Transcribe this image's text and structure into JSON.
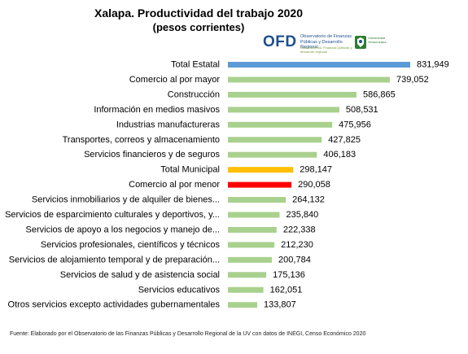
{
  "header": {
    "title": "Xalapa. Productividad  del trabajo 2020",
    "subtitle": "(pesos corrientes)"
  },
  "logo": {
    "acronym": "OFD",
    "name": "Observatorio de Finanzas Públicas y Desarrollo Regional",
    "tagline": "Datos Abiertos: Finanzas públicas y desarrollo regional",
    "institution": "Universidad Veracruzana",
    "icon": "uv-emblem-icon"
  },
  "chart_data": {
    "type": "bar",
    "orientation": "horizontal",
    "title": "Xalapa. Productividad  del trabajo 2020",
    "subtitle": "(pesos corrientes)",
    "xlabel": "",
    "ylabel": "",
    "xlim": [
      0,
      831949
    ],
    "grid": false,
    "legend": "none",
    "categories": [
      "Total Estatal",
      "Comercio al por mayor",
      "Construcción",
      "Información en medios masivos",
      "Industrias manufactureras",
      "Transportes, correos y almacenamiento",
      "Servicios financieros y de seguros",
      "Total Municipal",
      "Comercio al por menor",
      "Servicios inmobiliarios y de alquiler de bienes...",
      "Servicios de esparcimiento culturales y deportivos, y...",
      "Servicios de apoyo a los negocios y manejo de...",
      "Servicios profesionales, científicos y técnicos",
      "Servicios de alojamiento temporal y de preparación...",
      "Servicios de salud y de asistencia social",
      "Servicios educativos",
      "Otros servicios excepto actividades gubernamentales"
    ],
    "values": [
      831949,
      739052,
      586865,
      508531,
      475956,
      427825,
      406183,
      298147,
      290058,
      264132,
      235840,
      222338,
      212230,
      200784,
      175136,
      162051,
      133807
    ],
    "value_labels": [
      "831,949",
      "739,052",
      "586,865",
      "508,531",
      "475,956",
      "427,825",
      "406,183",
      "298,147",
      "290,058",
      "264,132",
      "235,840",
      "222,338",
      "212,230",
      "200,784",
      "175,136",
      "162,051",
      "133,807"
    ],
    "colors": [
      "#5b9bd5",
      "#a9d18e",
      "#a9d18e",
      "#a9d18e",
      "#a9d18e",
      "#a9d18e",
      "#a9d18e",
      "#ffc000",
      "#ff0000",
      "#a9d18e",
      "#a9d18e",
      "#a9d18e",
      "#a9d18e",
      "#a9d18e",
      "#a9d18e",
      "#a9d18e",
      "#a9d18e"
    ]
  },
  "source": "Fuente: Elaborado por el Observatorio de las Finanzas Públicas y Desarrollo Regional de la UV con datos de INEGI, Censo Económico 2020"
}
